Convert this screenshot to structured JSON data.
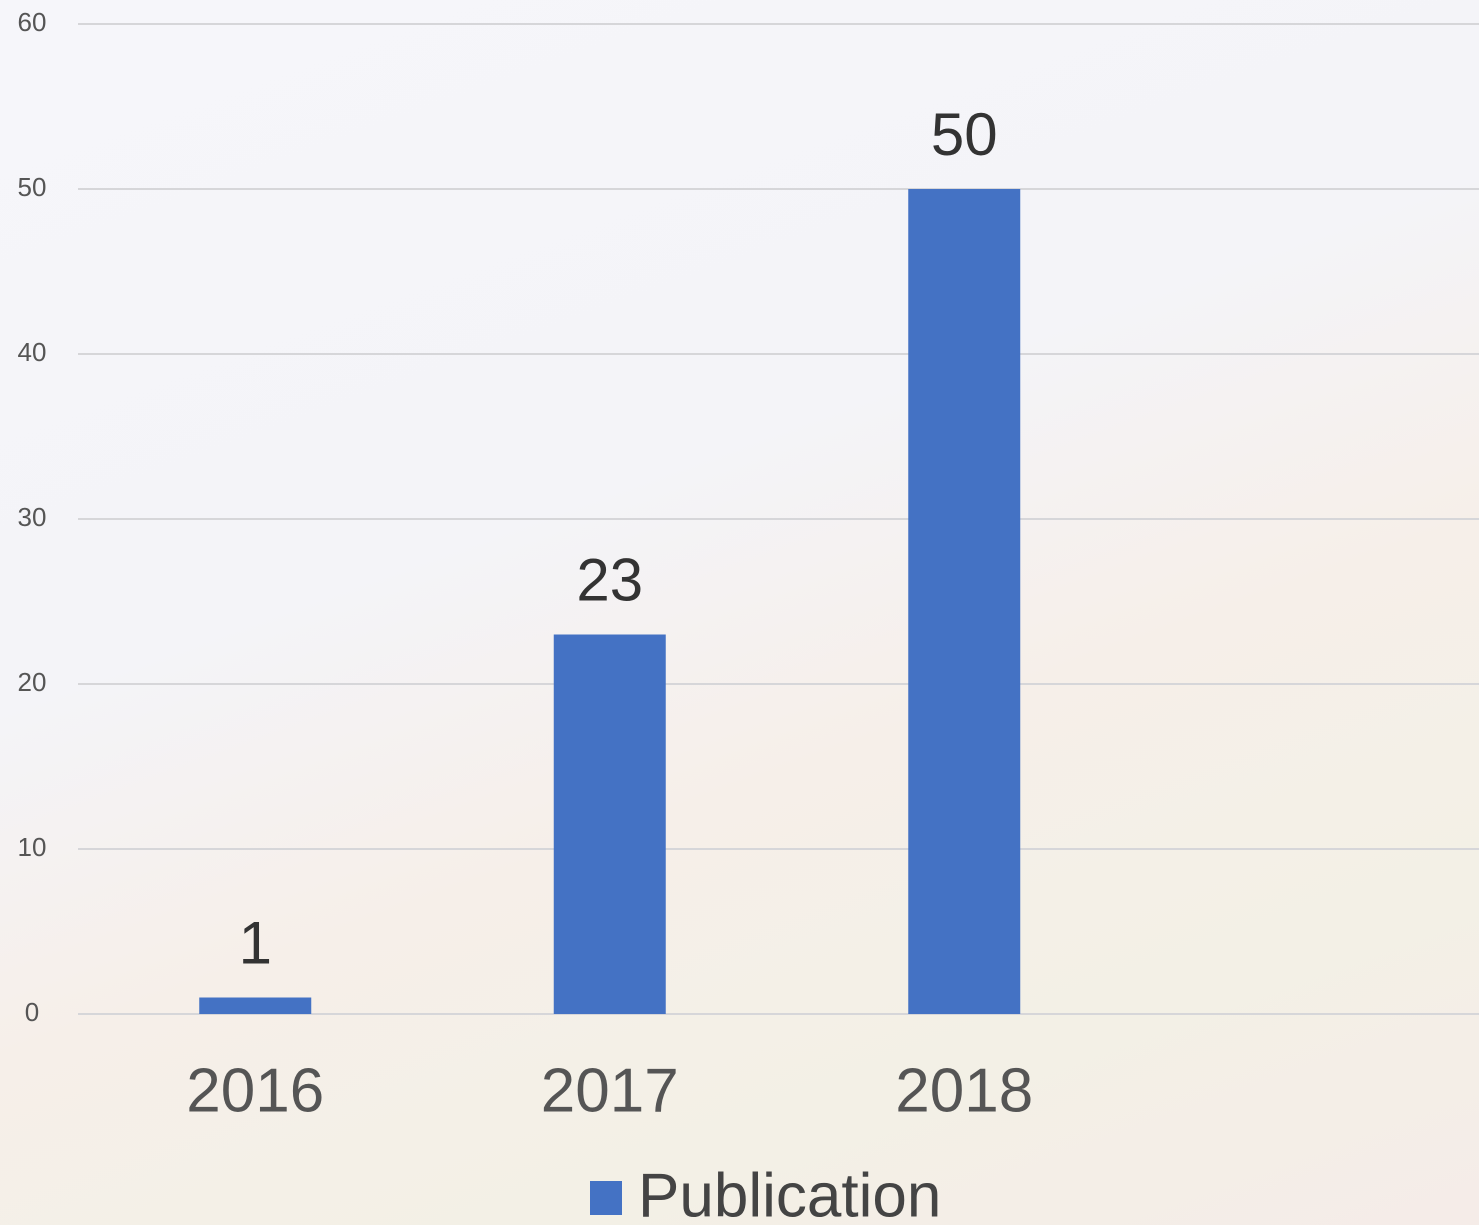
{
  "chart_data": {
    "type": "bar",
    "categories": [
      "2016",
      "2017",
      "2018"
    ],
    "series": [
      {
        "name": "Publication",
        "color": "#4472c4",
        "values": [
          1,
          23,
          50
        ]
      }
    ],
    "ylim": [
      0,
      60
    ],
    "yticks": [
      0,
      10,
      20,
      30,
      40,
      50,
      60
    ],
    "grid": true,
    "legend": "bottom"
  }
}
